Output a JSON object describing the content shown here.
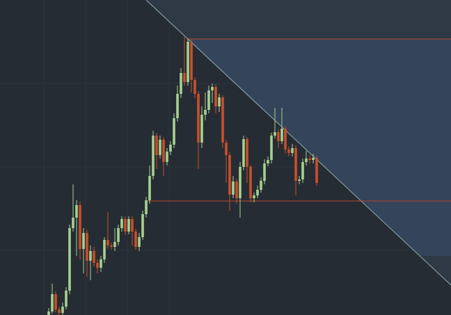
{
  "chart_data": {
    "type": "candlestick",
    "ylim": [
      0,
      453
    ],
    "up_color": "#a6d190",
    "down_color": "#c9502b",
    "level_color": "#b5472e",
    "levels": [
      397,
      164
    ],
    "open": [
      0,
      5,
      30,
      8,
      3,
      12,
      35,
      125,
      140,
      158,
      95,
      118,
      78,
      92,
      75,
      68,
      80,
      108,
      100,
      98,
      105,
      125,
      138,
      120,
      138,
      120,
      98,
      112,
      145,
      165,
      200,
      258,
      230,
      252,
      220,
      235,
      245,
      283,
      318,
      348,
      335,
      393,
      338,
      318,
      248,
      288,
      295,
      323,
      328,
      300,
      313,
      248,
      230,
      173,
      192,
      168,
      213,
      253,
      213,
      168,
      172,
      180,
      193,
      218,
      223,
      258,
      263,
      250,
      268,
      238,
      233,
      240,
      193,
      195,
      220,
      225,
      223,
      226
    ],
    "high": [
      10,
      45,
      34,
      12,
      18,
      40,
      130,
      188,
      165,
      163,
      125,
      122,
      100,
      98,
      80,
      85,
      112,
      148,
      104,
      125,
      130,
      142,
      142,
      142,
      142,
      124,
      118,
      150,
      170,
      215,
      265,
      262,
      258,
      256,
      240,
      250,
      290,
      330,
      355,
      400,
      398,
      396,
      342,
      322,
      300,
      320,
      330,
      333,
      332,
      318,
      316,
      252,
      234,
      200,
      196,
      220,
      258,
      256,
      216,
      176,
      186,
      198,
      224,
      228,
      262,
      298,
      268,
      298,
      272,
      242,
      246,
      244,
      200,
      225,
      236,
      230,
      232,
      230
    ],
    "low": [
      0,
      2,
      4,
      0,
      0,
      8,
      30,
      120,
      85,
      80,
      60,
      55,
      50,
      70,
      60,
      62,
      75,
      95,
      94,
      92,
      100,
      120,
      115,
      116,
      100,
      94,
      92,
      108,
      140,
      160,
      195,
      210,
      225,
      200,
      215,
      230,
      240,
      278,
      312,
      330,
      330,
      320,
      312,
      210,
      240,
      280,
      290,
      305,
      290,
      292,
      240,
      190,
      150,
      168,
      160,
      140,
      208,
      190,
      162,
      162,
      168,
      176,
      188,
      214,
      218,
      254,
      240,
      246,
      232,
      228,
      228,
      172,
      188,
      190,
      215,
      218,
      218,
      186
    ],
    "close": [
      5,
      30,
      8,
      3,
      12,
      35,
      125,
      140,
      158,
      95,
      118,
      78,
      92,
      75,
      68,
      80,
      108,
      100,
      98,
      105,
      125,
      138,
      120,
      138,
      120,
      98,
      112,
      145,
      165,
      200,
      258,
      230,
      252,
      220,
      235,
      245,
      283,
      318,
      348,
      335,
      393,
      338,
      318,
      248,
      288,
      295,
      323,
      328,
      300,
      313,
      248,
      230,
      173,
      192,
      168,
      213,
      253,
      213,
      168,
      172,
      180,
      193,
      218,
      223,
      258,
      263,
      250,
      268,
      238,
      233,
      240,
      193,
      195,
      220,
      225,
      223,
      226,
      190
    ]
  }
}
